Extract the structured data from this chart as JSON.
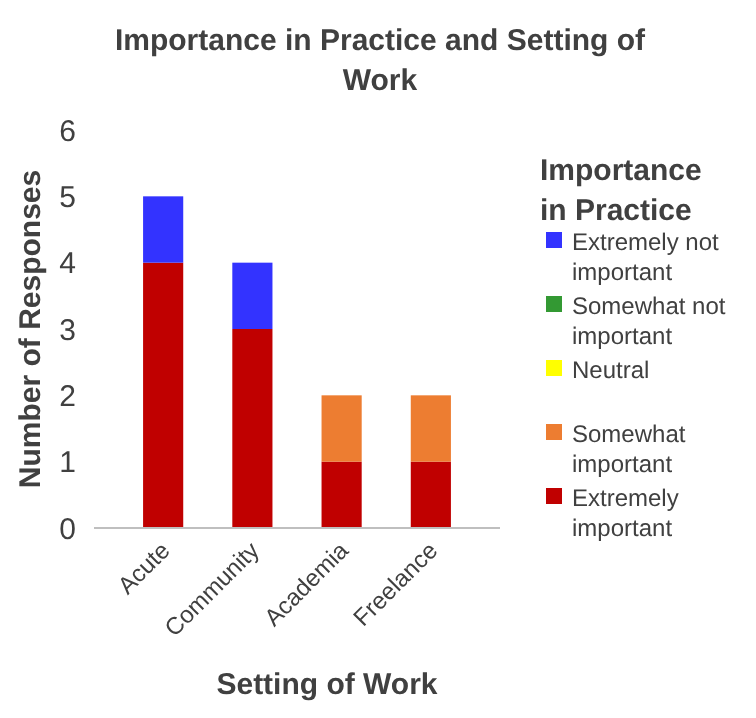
{
  "chart_data": {
    "type": "bar",
    "title": "Importance in Practice and Setting of Work",
    "xlabel": "Setting of Work",
    "ylabel": "Number of Responses",
    "legend_title": "Importance in Practice",
    "categories": [
      "Acute",
      "Community",
      "Academia",
      "Freelance"
    ],
    "stacked": true,
    "series": [
      {
        "name": "Extremely important",
        "color": "#c00000",
        "values": [
          4,
          3,
          1,
          1
        ]
      },
      {
        "name": "Somewhat important",
        "color": "#ed7d31",
        "values": [
          0,
          0,
          1,
          1
        ]
      },
      {
        "name": "Neutral",
        "color": "#ffff00",
        "values": [
          0,
          0,
          0,
          0
        ]
      },
      {
        "name": "Somewhat not important",
        "color": "#339933",
        "values": [
          0,
          0,
          0,
          0
        ]
      },
      {
        "name": "Extremely not important",
        "color": "#3333ff",
        "values": [
          1,
          1,
          0,
          0
        ]
      }
    ],
    "ylim": [
      0,
      6
    ],
    "yticks": [
      0,
      1,
      2,
      3,
      4,
      5,
      6
    ],
    "grid": false,
    "legend": "right"
  }
}
